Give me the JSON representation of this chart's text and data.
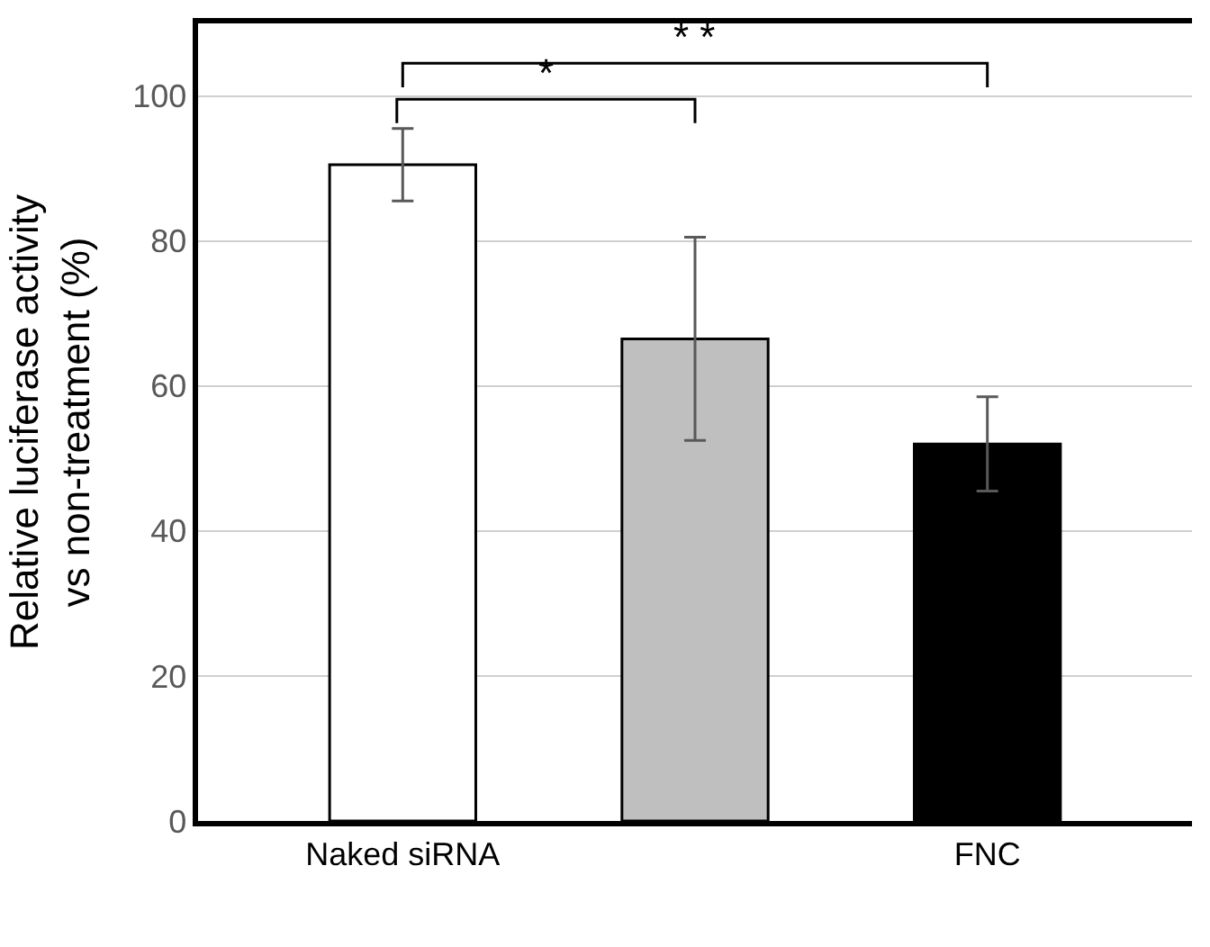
{
  "chart_data": {
    "type": "bar",
    "ylabel": "Relative luciferase activity\nvs non-treatment (%)",
    "categories": [
      "Naked siRNA",
      null,
      "FNC"
    ],
    "values": [
      90.5,
      66.5,
      52
    ],
    "colors": [
      "#ffffff",
      "#bfbfbf",
      "#000000"
    ],
    "errors": [
      5,
      14,
      6.5
    ],
    "ylim": [
      0,
      110
    ],
    "yticks": [
      0,
      20,
      40,
      60,
      80,
      100
    ],
    "grid": "y",
    "annotations": [
      "*",
      "* *"
    ]
  }
}
